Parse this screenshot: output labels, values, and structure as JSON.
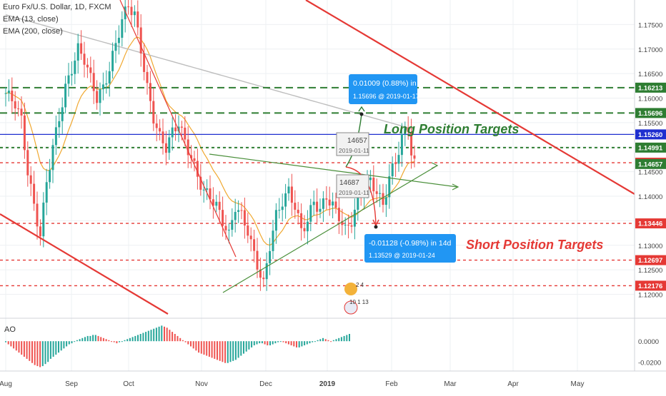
{
  "legend": {
    "title": "Euro Fx/U.S. Dollar, 1D, FXCM",
    "ema_fast": "EMA (13, close)",
    "ema_slow": "EMA (200, close)",
    "indicator": "AO"
  },
  "annotations": {
    "long_targets": "Long Position Targets",
    "short_targets": "Short Position Targets",
    "long_callout_line1": "0.01009 (0.88%) in 7d",
    "long_callout_line2": "1.15696 @ 2019-01-17",
    "short_callout_line1": "-0.01128 (-0.98%) in 14d",
    "short_callout_line2": "1.13529 @ 2019-01-24",
    "upper_box_price": "14657",
    "upper_box_date": "2019-01-11",
    "lower_box_price": "14687",
    "lower_box_date": "2019-01-11",
    "event_text_1": "2  4",
    "event_text_2": "10  1 13"
  },
  "colors": {
    "up": "#26a69a",
    "down": "#ef5350",
    "target_green": "#2e7d32",
    "target_red": "#e53935",
    "trend_red": "#e53935",
    "blue_line": "#1e2fcf",
    "callout_blue": "#2196f3",
    "ema_slow": "#bdbdbd",
    "ema_fast": "#f0a830"
  },
  "chart_data": {
    "type": "candlestick",
    "title": "Euro Fx/U.S. Dollar, 1D, FXCM",
    "x_ticks": [
      "Aug",
      "Sep",
      "Oct",
      "Nov",
      "Dec",
      "2019",
      "Feb",
      "Mar",
      "Apr",
      "May"
    ],
    "y_ticks": [
      "1.17500",
      "1.17000",
      "1.16500",
      "1.16000",
      "1.15500",
      "1.15000",
      "1.14500",
      "1.14000",
      "1.13500",
      "1.13000",
      "1.12500",
      "1.12000"
    ],
    "ylim": [
      1.116,
      1.18
    ],
    "price_levels": [
      {
        "label": "1.16213",
        "value": 1.16213,
        "color": "#2e7d32",
        "style": "dashed"
      },
      {
        "label": "1.15696",
        "value": 1.15696,
        "color": "#2e7d32",
        "style": "dashed"
      },
      {
        "label": "1.15260",
        "value": 1.1526,
        "color": "#1e2fcf",
        "style": "solid"
      },
      {
        "label": "1.14991",
        "value": 1.14991,
        "color": "#2e7d32",
        "style": "dashed"
      },
      {
        "label": "1.14683",
        "value": 1.14683,
        "color": "#e53935",
        "style": "dashed"
      },
      {
        "label": "1.14657",
        "value": 1.14657,
        "color": "#2e7d32",
        "style": "tag"
      },
      {
        "label": "1.13446",
        "value": 1.13446,
        "color": "#e53935",
        "style": "dashed"
      },
      {
        "label": "1.12697",
        "value": 1.12697,
        "color": "#e53935",
        "style": "dashed"
      },
      {
        "label": "1.12176",
        "value": 1.12176,
        "color": "#e53935",
        "style": "dashed"
      }
    ],
    "ao": {
      "name": "AO",
      "y_ticks": [
        "0.0000",
        "-0.0200"
      ],
      "ylim": [
        -0.026,
        0.018
      ],
      "values": [
        -0.001,
        -0.003,
        -0.005,
        -0.007,
        -0.009,
        -0.011,
        -0.013,
        -0.015,
        -0.017,
        -0.019,
        -0.021,
        -0.023,
        -0.024,
        -0.025,
        -0.024,
        -0.022,
        -0.02,
        -0.017,
        -0.015,
        -0.013,
        -0.011,
        -0.009,
        -0.007,
        -0.005,
        -0.003,
        -0.002,
        0.0,
        0.001,
        0.002,
        0.003,
        0.004,
        0.005,
        0.005,
        0.006,
        0.006,
        0.005,
        0.004,
        0.003,
        0.002,
        0.001,
        0.0,
        -0.001,
        -0.002,
        -0.001,
        0.0,
        0.001,
        0.002,
        0.003,
        0.004,
        0.005,
        0.006,
        0.007,
        0.008,
        0.009,
        0.01,
        0.011,
        0.012,
        0.013,
        0.014,
        0.015,
        0.014,
        0.013,
        0.011,
        0.009,
        0.007,
        0.005,
        0.003,
        0.001,
        -0.001,
        -0.003,
        -0.005,
        -0.007,
        -0.009,
        -0.011,
        -0.012,
        -0.013,
        -0.014,
        -0.015,
        -0.016,
        -0.017,
        -0.018,
        -0.019,
        -0.02,
        -0.021,
        -0.021,
        -0.02,
        -0.019,
        -0.018,
        -0.016,
        -0.014,
        -0.012,
        -0.01,
        -0.008,
        -0.006,
        -0.004,
        -0.003,
        -0.002,
        -0.002,
        -0.003,
        -0.004,
        -0.004,
        -0.003,
        -0.002,
        -0.001,
        0.0,
        -0.001,
        -0.002,
        -0.003,
        -0.004,
        -0.005,
        -0.006,
        -0.006,
        -0.005,
        -0.004,
        -0.003,
        -0.002,
        -0.001,
        0.0,
        0.001,
        0.002,
        0.003,
        0.002,
        0.001,
        0.0,
        0.001,
        0.002,
        0.003,
        0.004,
        0.005,
        0.006,
        0.007
      ]
    }
  }
}
